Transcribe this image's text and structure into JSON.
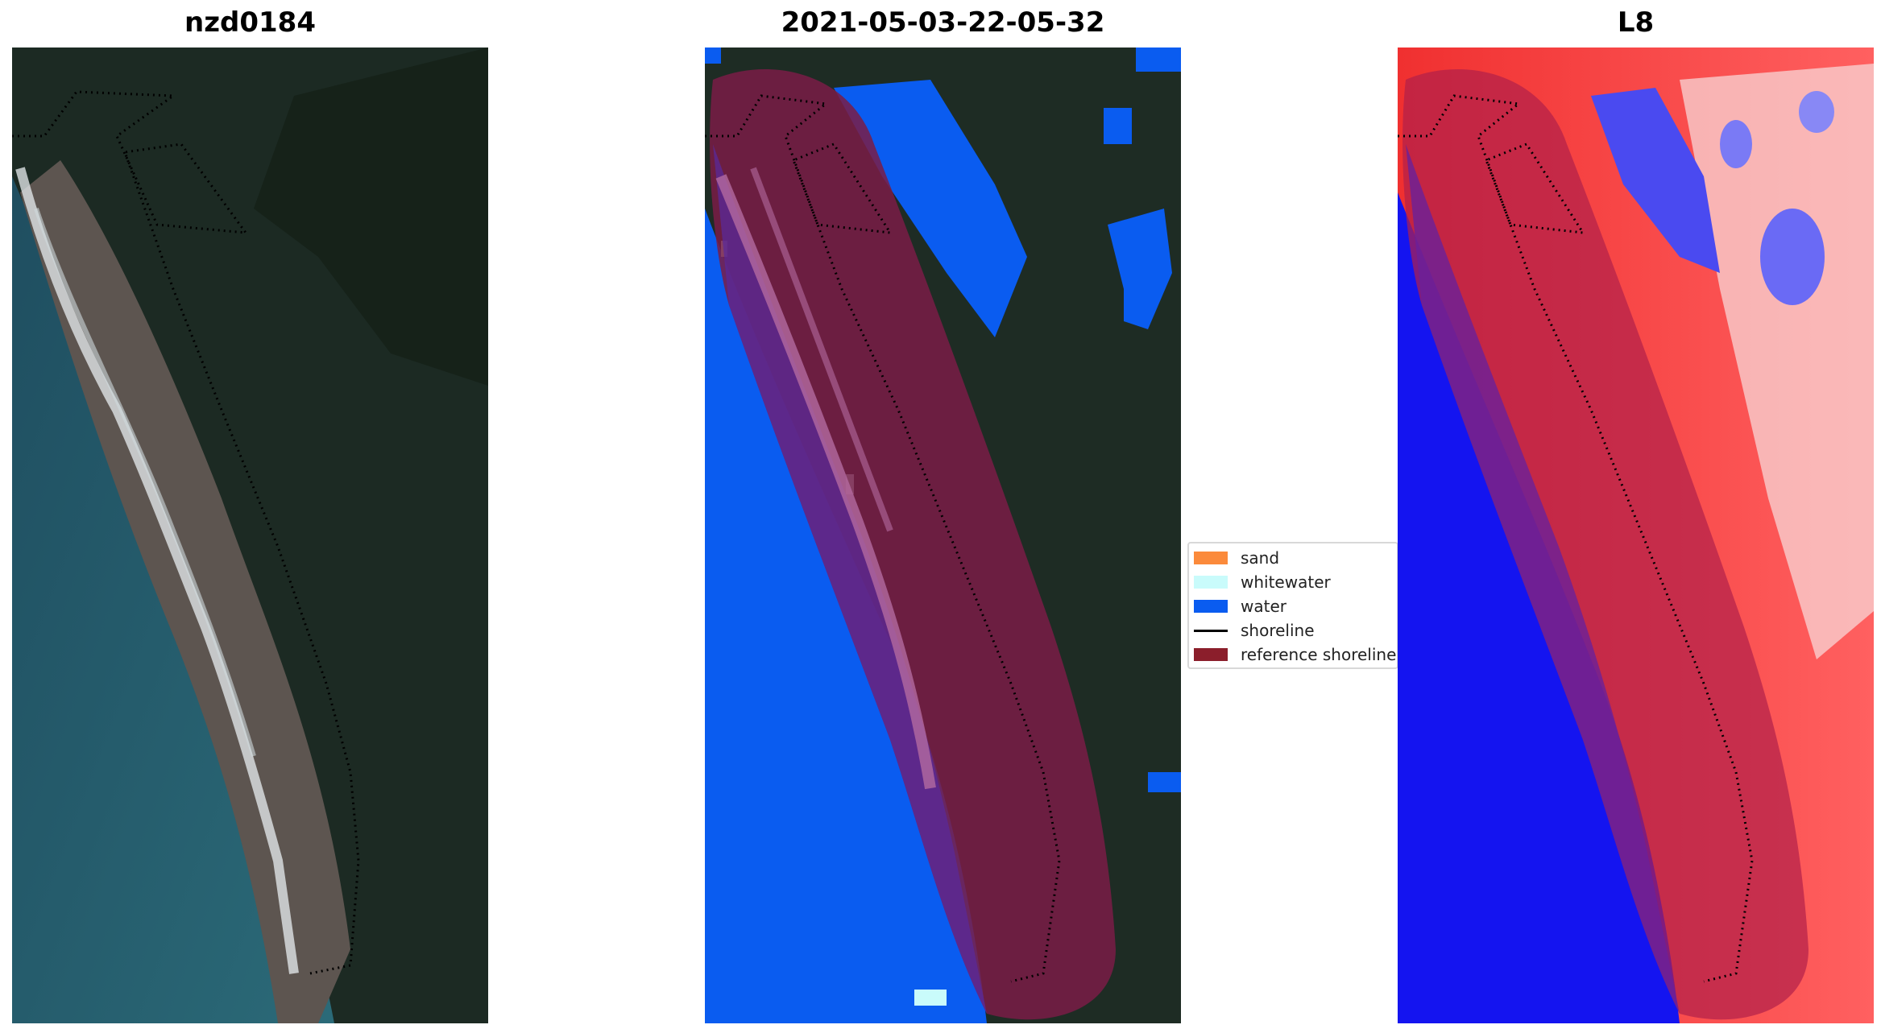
{
  "panels": [
    {
      "title": "nzd0184"
    },
    {
      "title": "2021-05-03-22-05-32"
    },
    {
      "title": "L8"
    }
  ],
  "legend": {
    "items": [
      {
        "label": "sand",
        "color": "#fb8a3b",
        "kind": "patch"
      },
      {
        "label": "whitewater",
        "color": "#c9fbfb",
        "kind": "patch"
      },
      {
        "label": "water",
        "color": "#0a5cf0",
        "kind": "patch"
      },
      {
        "label": "shoreline",
        "color": "#000000",
        "kind": "line"
      },
      {
        "label": "reference shoreline",
        "color": "#8b1e2b",
        "kind": "patch"
      }
    ]
  },
  "colors": {
    "ocean": "#1f4a5a",
    "forest": "#1c2b22",
    "beach": "#5e5650",
    "water_class": "#0a5cf0",
    "reference_band": "#7a1c46",
    "heat_red": "#f02a2a",
    "heat_blue": "#1414f0"
  }
}
